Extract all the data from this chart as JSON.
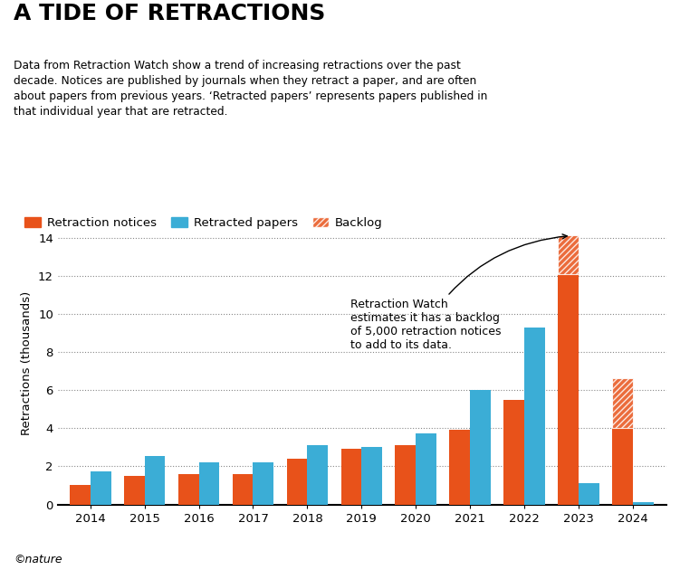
{
  "title": "A TIDE OF RETRACTIONS",
  "subtitle": "Data from Retraction Watch show a trend of increasing retractions over the past\ndecade. Notices are published by journals when they retract a paper, and are often\nabout papers from previous years. ‘Retracted papers’ represents papers published in\nthat individual year that are retracted.",
  "years": [
    2014,
    2015,
    2016,
    2017,
    2018,
    2019,
    2020,
    2021,
    2022,
    2023,
    2024
  ],
  "retraction_notices": [
    1.0,
    1.5,
    1.6,
    1.6,
    2.4,
    2.9,
    3.1,
    3.9,
    5.5,
    12.1,
    4.0
  ],
  "retracted_papers": [
    1.75,
    2.55,
    2.2,
    2.2,
    3.1,
    3.0,
    3.75,
    6.0,
    9.3,
    1.1,
    0.1
  ],
  "backlog_2023": 2.0,
  "backlog_2024": 2.6,
  "notice_color": "#E8521A",
  "paper_color": "#3BADD6",
  "annotation_text": "Retraction Watch\nestimates it has a backlog\nof 5,000 retraction notices\nto add to its data.",
  "ylabel": "Retractions (thousands)",
  "ylim": [
    0,
    14.8
  ],
  "yticks": [
    0,
    2,
    4,
    6,
    8,
    10,
    12,
    14
  ],
  "footer": "©nature",
  "background_color": "#FFFFFF",
  "legend_labels": [
    "Retraction notices",
    "Retracted papers",
    "Backlog"
  ]
}
